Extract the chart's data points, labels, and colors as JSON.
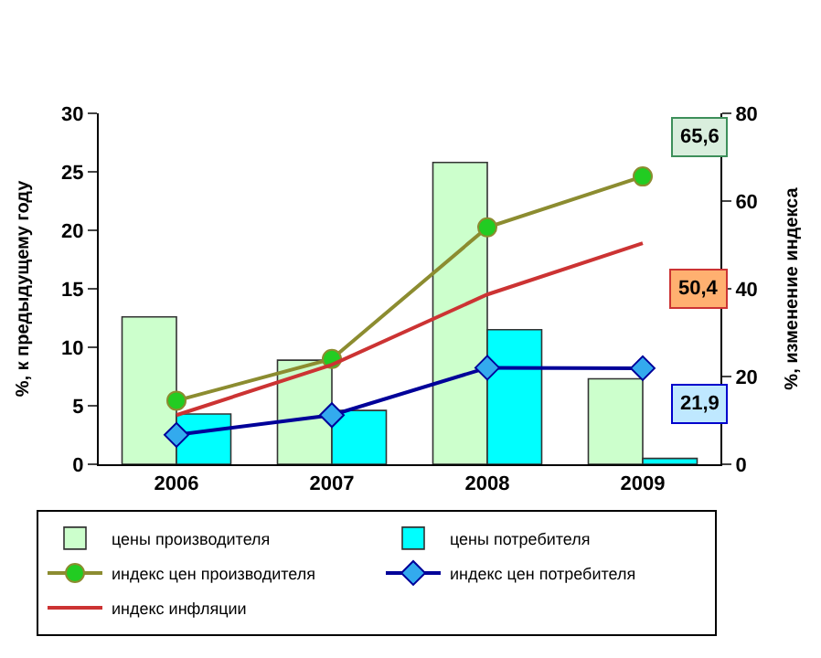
{
  "chart_data": {
    "type": "bar",
    "categories": [
      "2006",
      "2007",
      "2008",
      "2009"
    ],
    "ylabel": "%, к предыдущему году",
    "y2label": "%, изменение индекса",
    "ylim": [
      0,
      30
    ],
    "yticks": [
      0,
      5,
      10,
      15,
      20,
      25,
      30
    ],
    "y2lim": [
      0,
      80
    ],
    "y2ticks": [
      0,
      20,
      40,
      60,
      80
    ],
    "legend": "bottom",
    "series": [
      {
        "name": "цены производителя",
        "color": "#ccffcc",
        "values": [
          12.6,
          8.9,
          25.8,
          7.3
        ]
      },
      {
        "name": "цены потребителя",
        "color": "#00ffff",
        "values": [
          4.3,
          4.6,
          11.5,
          0.5
        ]
      },
      {
        "name": "индекс цен производителя",
        "type": "line",
        "axis": "y2",
        "color": "#8c8c30",
        "marker": "circle",
        "values": [
          14.5,
          24,
          54,
          65.6
        ]
      },
      {
        "name": "индекс цен потребителя",
        "type": "line",
        "axis": "y2",
        "color": "#000099",
        "marker": "diamond",
        "values": [
          6.7,
          11.2,
          22,
          21.9
        ]
      },
      {
        "name": "индекс инфляции",
        "type": "line",
        "axis": "y2",
        "color": "#cc3333",
        "marker": "none",
        "values": [
          11.2,
          22.7,
          38.7,
          50.4
        ]
      }
    ],
    "annotations": [
      "65,6",
      "50,4",
      "21,9"
    ]
  }
}
